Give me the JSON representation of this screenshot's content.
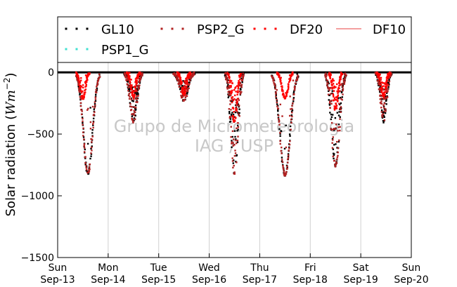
{
  "chart_data": {
    "type": "scatter",
    "title": "",
    "ylabel_main": "Solar radiation (",
    "ylabel_math": "Wm",
    "ylabel_exp": "−2",
    "ylabel_close": ")",
    "xlabel": "",
    "ylim": [
      -1500,
      80
    ],
    "xlim": [
      0,
      7
    ],
    "y_ticks": [
      {
        "value": 0,
        "label": "0"
      },
      {
        "value": -500,
        "label": "−500"
      },
      {
        "value": -1000,
        "label": "−1000"
      },
      {
        "value": -1500,
        "label": "−1500"
      }
    ],
    "x_ticks": [
      {
        "value": 0,
        "day": "Sun",
        "date": "Sep-13"
      },
      {
        "value": 1,
        "day": "Mon",
        "date": "Sep-14"
      },
      {
        "value": 2,
        "day": "Tue",
        "date": "Sep-15"
      },
      {
        "value": 3,
        "day": "Wed",
        "date": "Sep-16"
      },
      {
        "value": 4,
        "day": "Thu",
        "date": "Sep-17"
      },
      {
        "value": 5,
        "day": "Fri",
        "date": "Sep-18"
      },
      {
        "value": 6,
        "day": "Sat",
        "date": "Sep-19"
      },
      {
        "value": 7,
        "day": "Sun",
        "date": "Sep-20"
      }
    ],
    "grid": "vertical",
    "legend_placement": "top",
    "watermark": [
      "Grupo de Micrometeorologia",
      "IAG / USP"
    ],
    "series": [
      {
        "name": "GL10",
        "color": "#000000",
        "style": "dots",
        "days": [
          {
            "peak": 0.6,
            "amp": 820,
            "width": 0.09,
            "cloud": 0.15
          },
          {
            "peak": 1.5,
            "amp": 400,
            "width": 0.07,
            "cloud": 0.6
          },
          {
            "peak": 2.5,
            "amp": 230,
            "width": 0.08,
            "cloud": 0.7
          },
          {
            "peak": 3.5,
            "amp": 820,
            "width": 0.07,
            "cloud": 0.8
          },
          {
            "peak": 4.5,
            "amp": 830,
            "width": 0.1,
            "cloud": 0.1
          },
          {
            "peak": 5.5,
            "amp": 760,
            "width": 0.08,
            "cloud": 0.6
          },
          {
            "peak": 6.45,
            "amp": 400,
            "width": 0.06,
            "cloud": 0.8
          }
        ]
      },
      {
        "name": "PSP1_G",
        "color": "#40e0d0",
        "style": "dots",
        "days": []
      },
      {
        "name": "PSP2_G",
        "color": "#b22222",
        "style": "dots",
        "days": [
          {
            "peak": 0.6,
            "amp": 820,
            "width": 0.09,
            "cloud": 0.15
          },
          {
            "peak": 1.5,
            "amp": 400,
            "width": 0.07,
            "cloud": 0.6
          },
          {
            "peak": 2.5,
            "amp": 230,
            "width": 0.08,
            "cloud": 0.7
          },
          {
            "peak": 3.5,
            "amp": 820,
            "width": 0.07,
            "cloud": 0.8
          },
          {
            "peak": 4.5,
            "amp": 830,
            "width": 0.1,
            "cloud": 0.1
          },
          {
            "peak": 5.5,
            "amp": 760,
            "width": 0.08,
            "cloud": 0.6
          },
          {
            "peak": 6.45,
            "amp": 400,
            "width": 0.06,
            "cloud": 0.8
          }
        ]
      },
      {
        "name": "DF20",
        "color": "#ff0000",
        "style": "dots",
        "days": [
          {
            "peak": 0.5,
            "amp": 210,
            "width": 0.05,
            "cloud": 0.3
          },
          {
            "peak": 1.5,
            "amp": 200,
            "width": 0.05,
            "cloud": 0.5
          },
          {
            "peak": 2.5,
            "amp": 180,
            "width": 0.05,
            "cloud": 0.5
          },
          {
            "peak": 3.5,
            "amp": 400,
            "width": 0.05,
            "cloud": 0.4
          },
          {
            "peak": 4.5,
            "amp": 210,
            "width": 0.06,
            "cloud": 0.1
          },
          {
            "peak": 5.5,
            "amp": 300,
            "width": 0.05,
            "cloud": 0.5
          },
          {
            "peak": 6.45,
            "amp": 200,
            "width": 0.05,
            "cloud": 0.5
          }
        ]
      },
      {
        "name": "DF10",
        "color": "#f08080",
        "style": "line",
        "days": []
      }
    ]
  }
}
